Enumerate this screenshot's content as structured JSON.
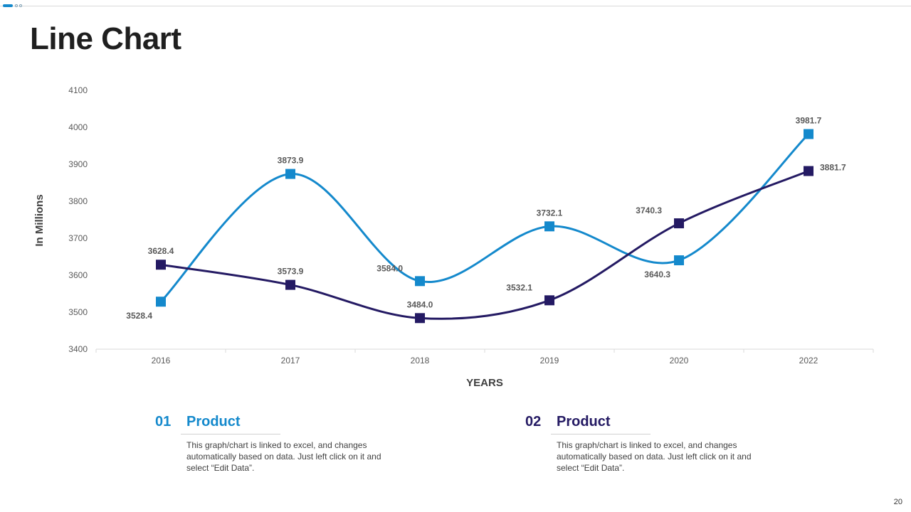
{
  "page": {
    "title": "Line Chart",
    "page_number": "20"
  },
  "colors": {
    "series_light": "#1489cc",
    "series_dark": "#241a63",
    "axis": "#d9d9d9"
  },
  "chart_data": {
    "type": "line",
    "title": "",
    "xlabel": "YEARS",
    "ylabel": "In Millions",
    "categories": [
      "2016",
      "2017",
      "2018",
      "2019",
      "2020",
      "2022"
    ],
    "ylim": [
      3400,
      4100
    ],
    "yticks": [
      3400,
      3500,
      3600,
      3700,
      3800,
      3900,
      4000,
      4100
    ],
    "grid": false,
    "series": [
      {
        "name": "Product 01",
        "color": "#1489cc",
        "values": [
          3528.4,
          3873.9,
          3584.0,
          3732.1,
          3640.3,
          3981.7
        ],
        "labels": [
          "3528.4",
          "3873.9",
          "3584.0",
          "3732.1",
          "3640.3",
          "3981.7"
        ],
        "label_pos": [
          "below-left",
          "above",
          "above-left",
          "above",
          "below-left",
          "above"
        ]
      },
      {
        "name": "Product 02",
        "color": "#241a63",
        "values": [
          3628.4,
          3573.9,
          3484.0,
          3532.1,
          3740.3,
          3881.7
        ],
        "labels": [
          "3628.4",
          "3573.9",
          "3484.0",
          "3532.1",
          "3740.3",
          "3881.7"
        ],
        "label_pos": [
          "above",
          "above",
          "above",
          "above-left",
          "above-left",
          "right"
        ]
      }
    ]
  },
  "legend": [
    {
      "number": "01",
      "name": "Product",
      "color": "#1489cc",
      "description": "This graph/chart is linked to excel, and changes automatically based on data. Just left click on it and select “Edit Data”."
    },
    {
      "number": "02",
      "name": "Product",
      "color": "#241a63",
      "description": "This graph/chart is linked to excel, and changes automatically based on data. Just left click on it and select “Edit Data”."
    }
  ]
}
